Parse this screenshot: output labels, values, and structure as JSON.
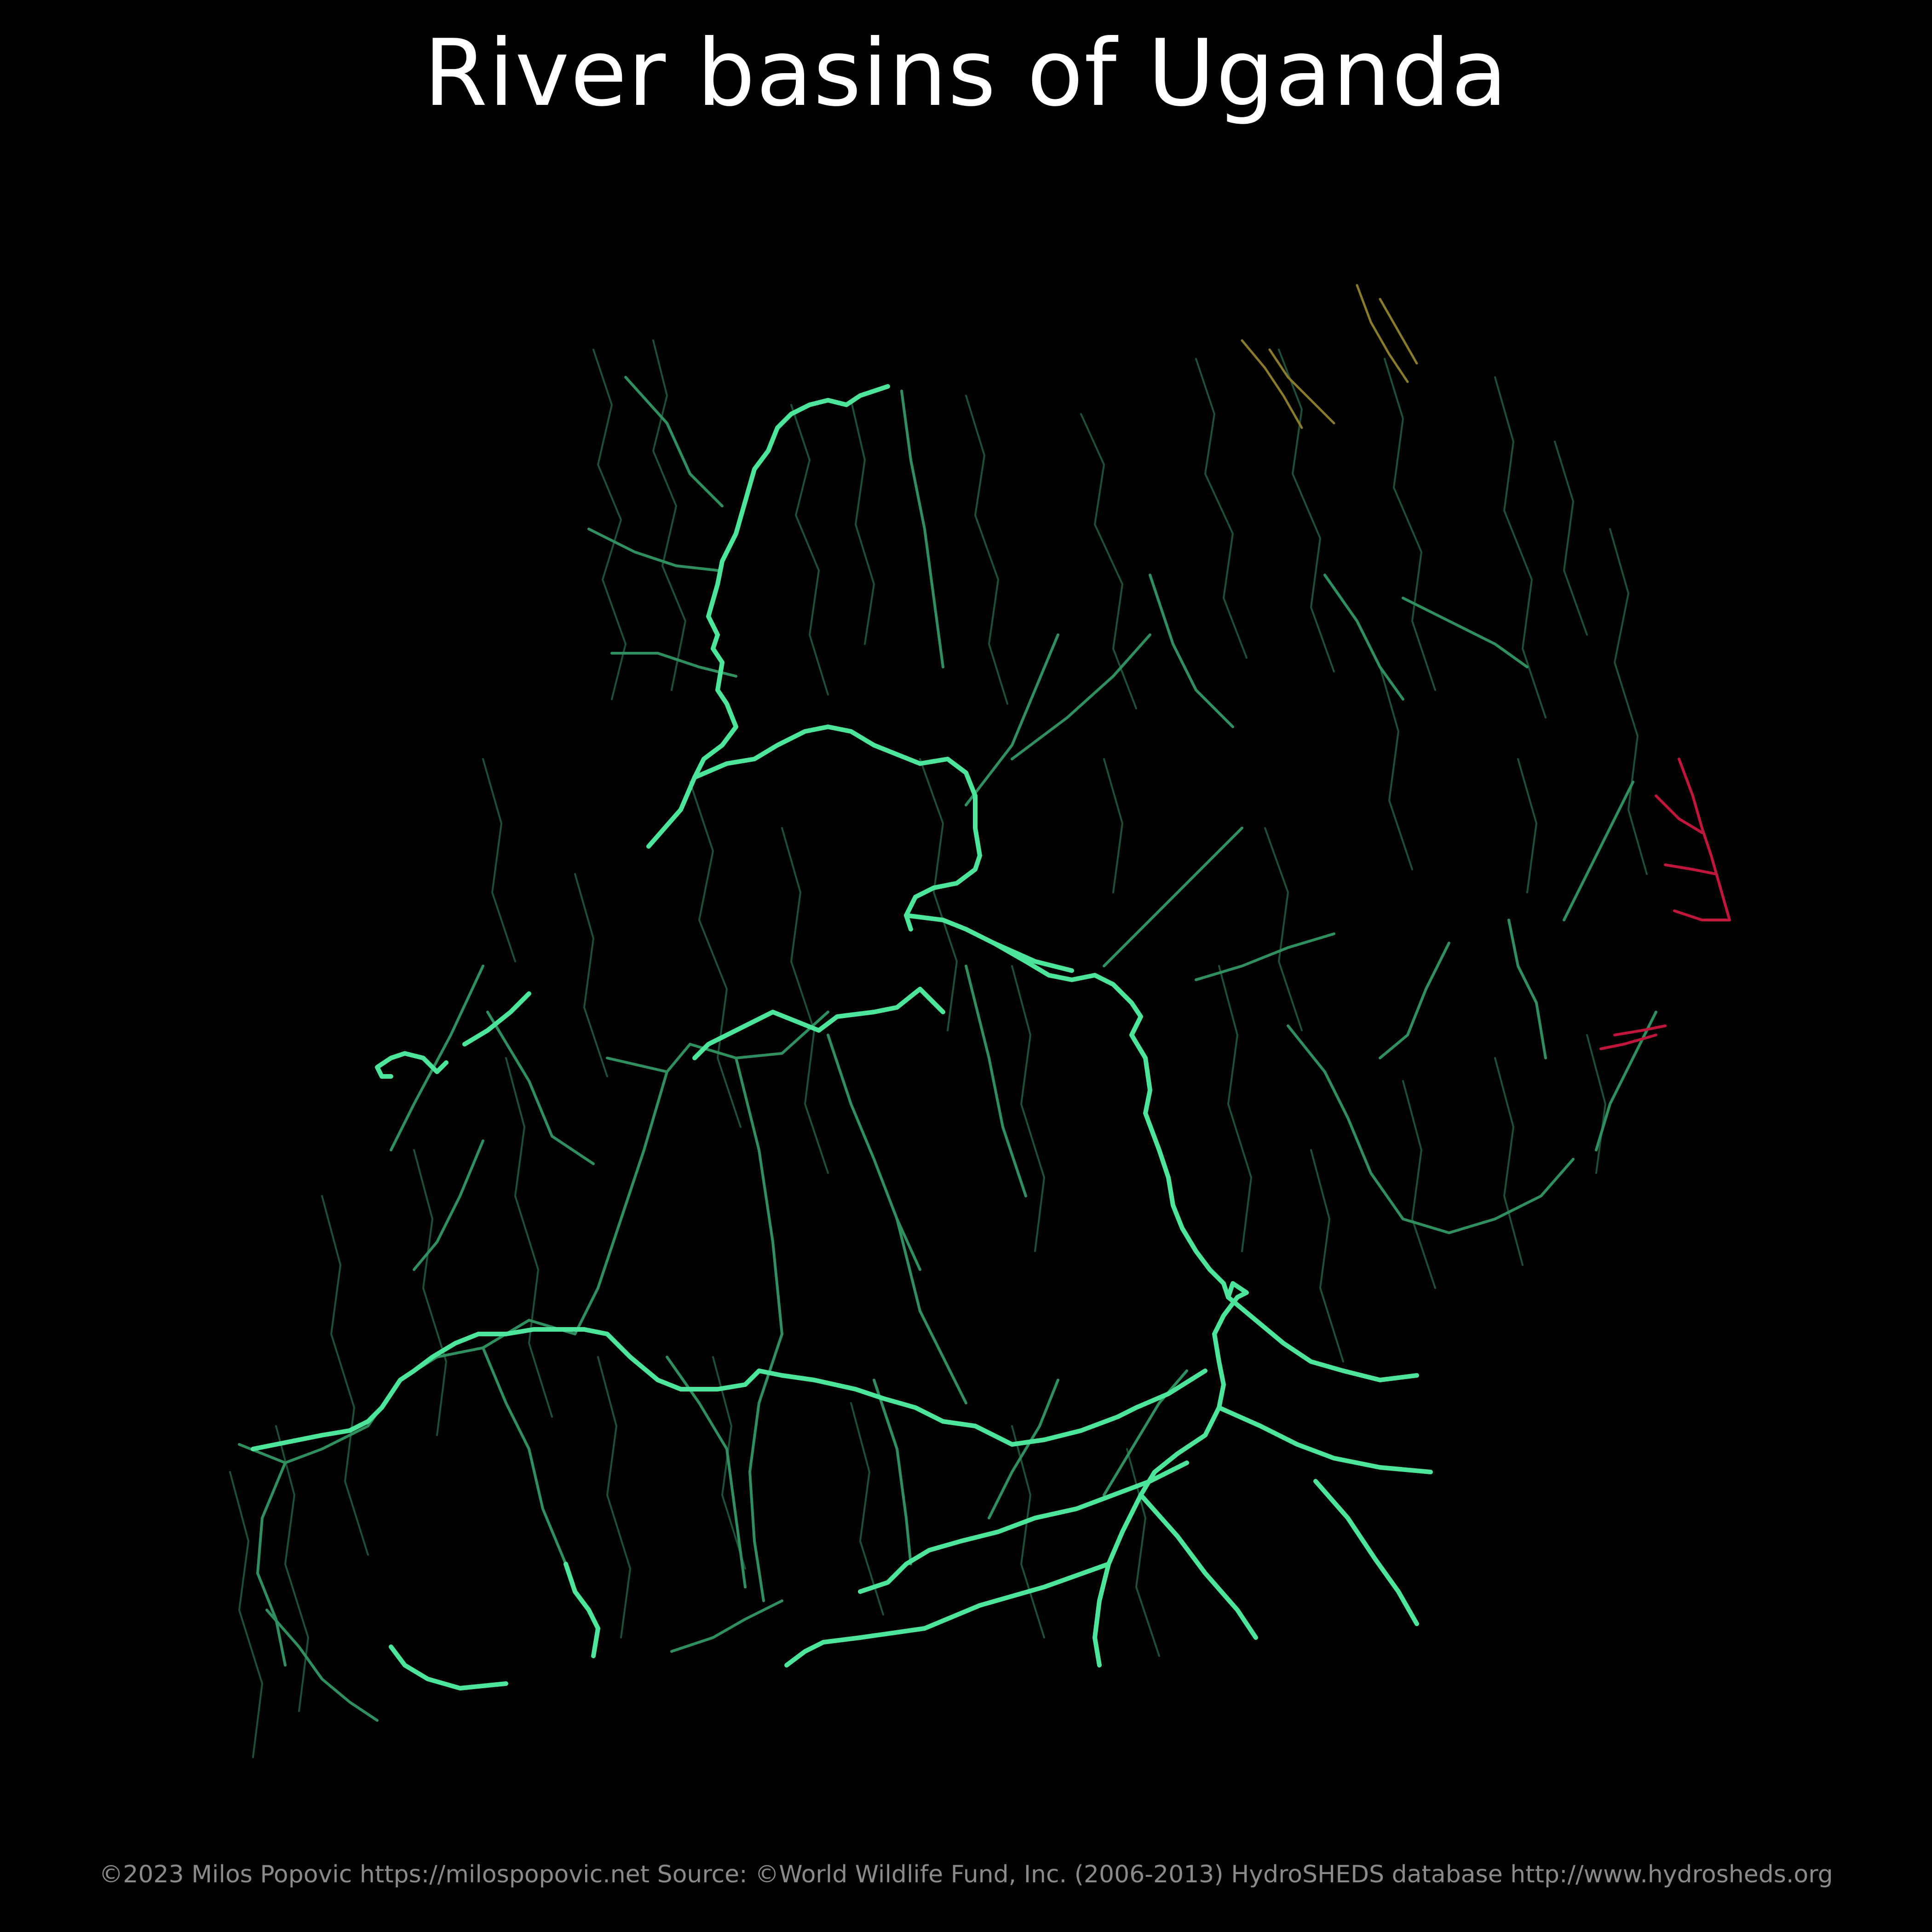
{
  "title": "River basins of Uganda",
  "caption": "©2023 Milos Popovic https://milospopovic.net Source: ©World Wildlife Fund, Inc. (2006-2013) HydroSHEDS database http://www.hydrosheds.org",
  "colors": {
    "background": "#000000",
    "main_river": "#4de59a",
    "tributary": "#2f8f5e",
    "fine_stream": "#1f5a3d",
    "northeast_basin": "#8a7a2a",
    "eastern_basin": "#c0163c"
  }
}
